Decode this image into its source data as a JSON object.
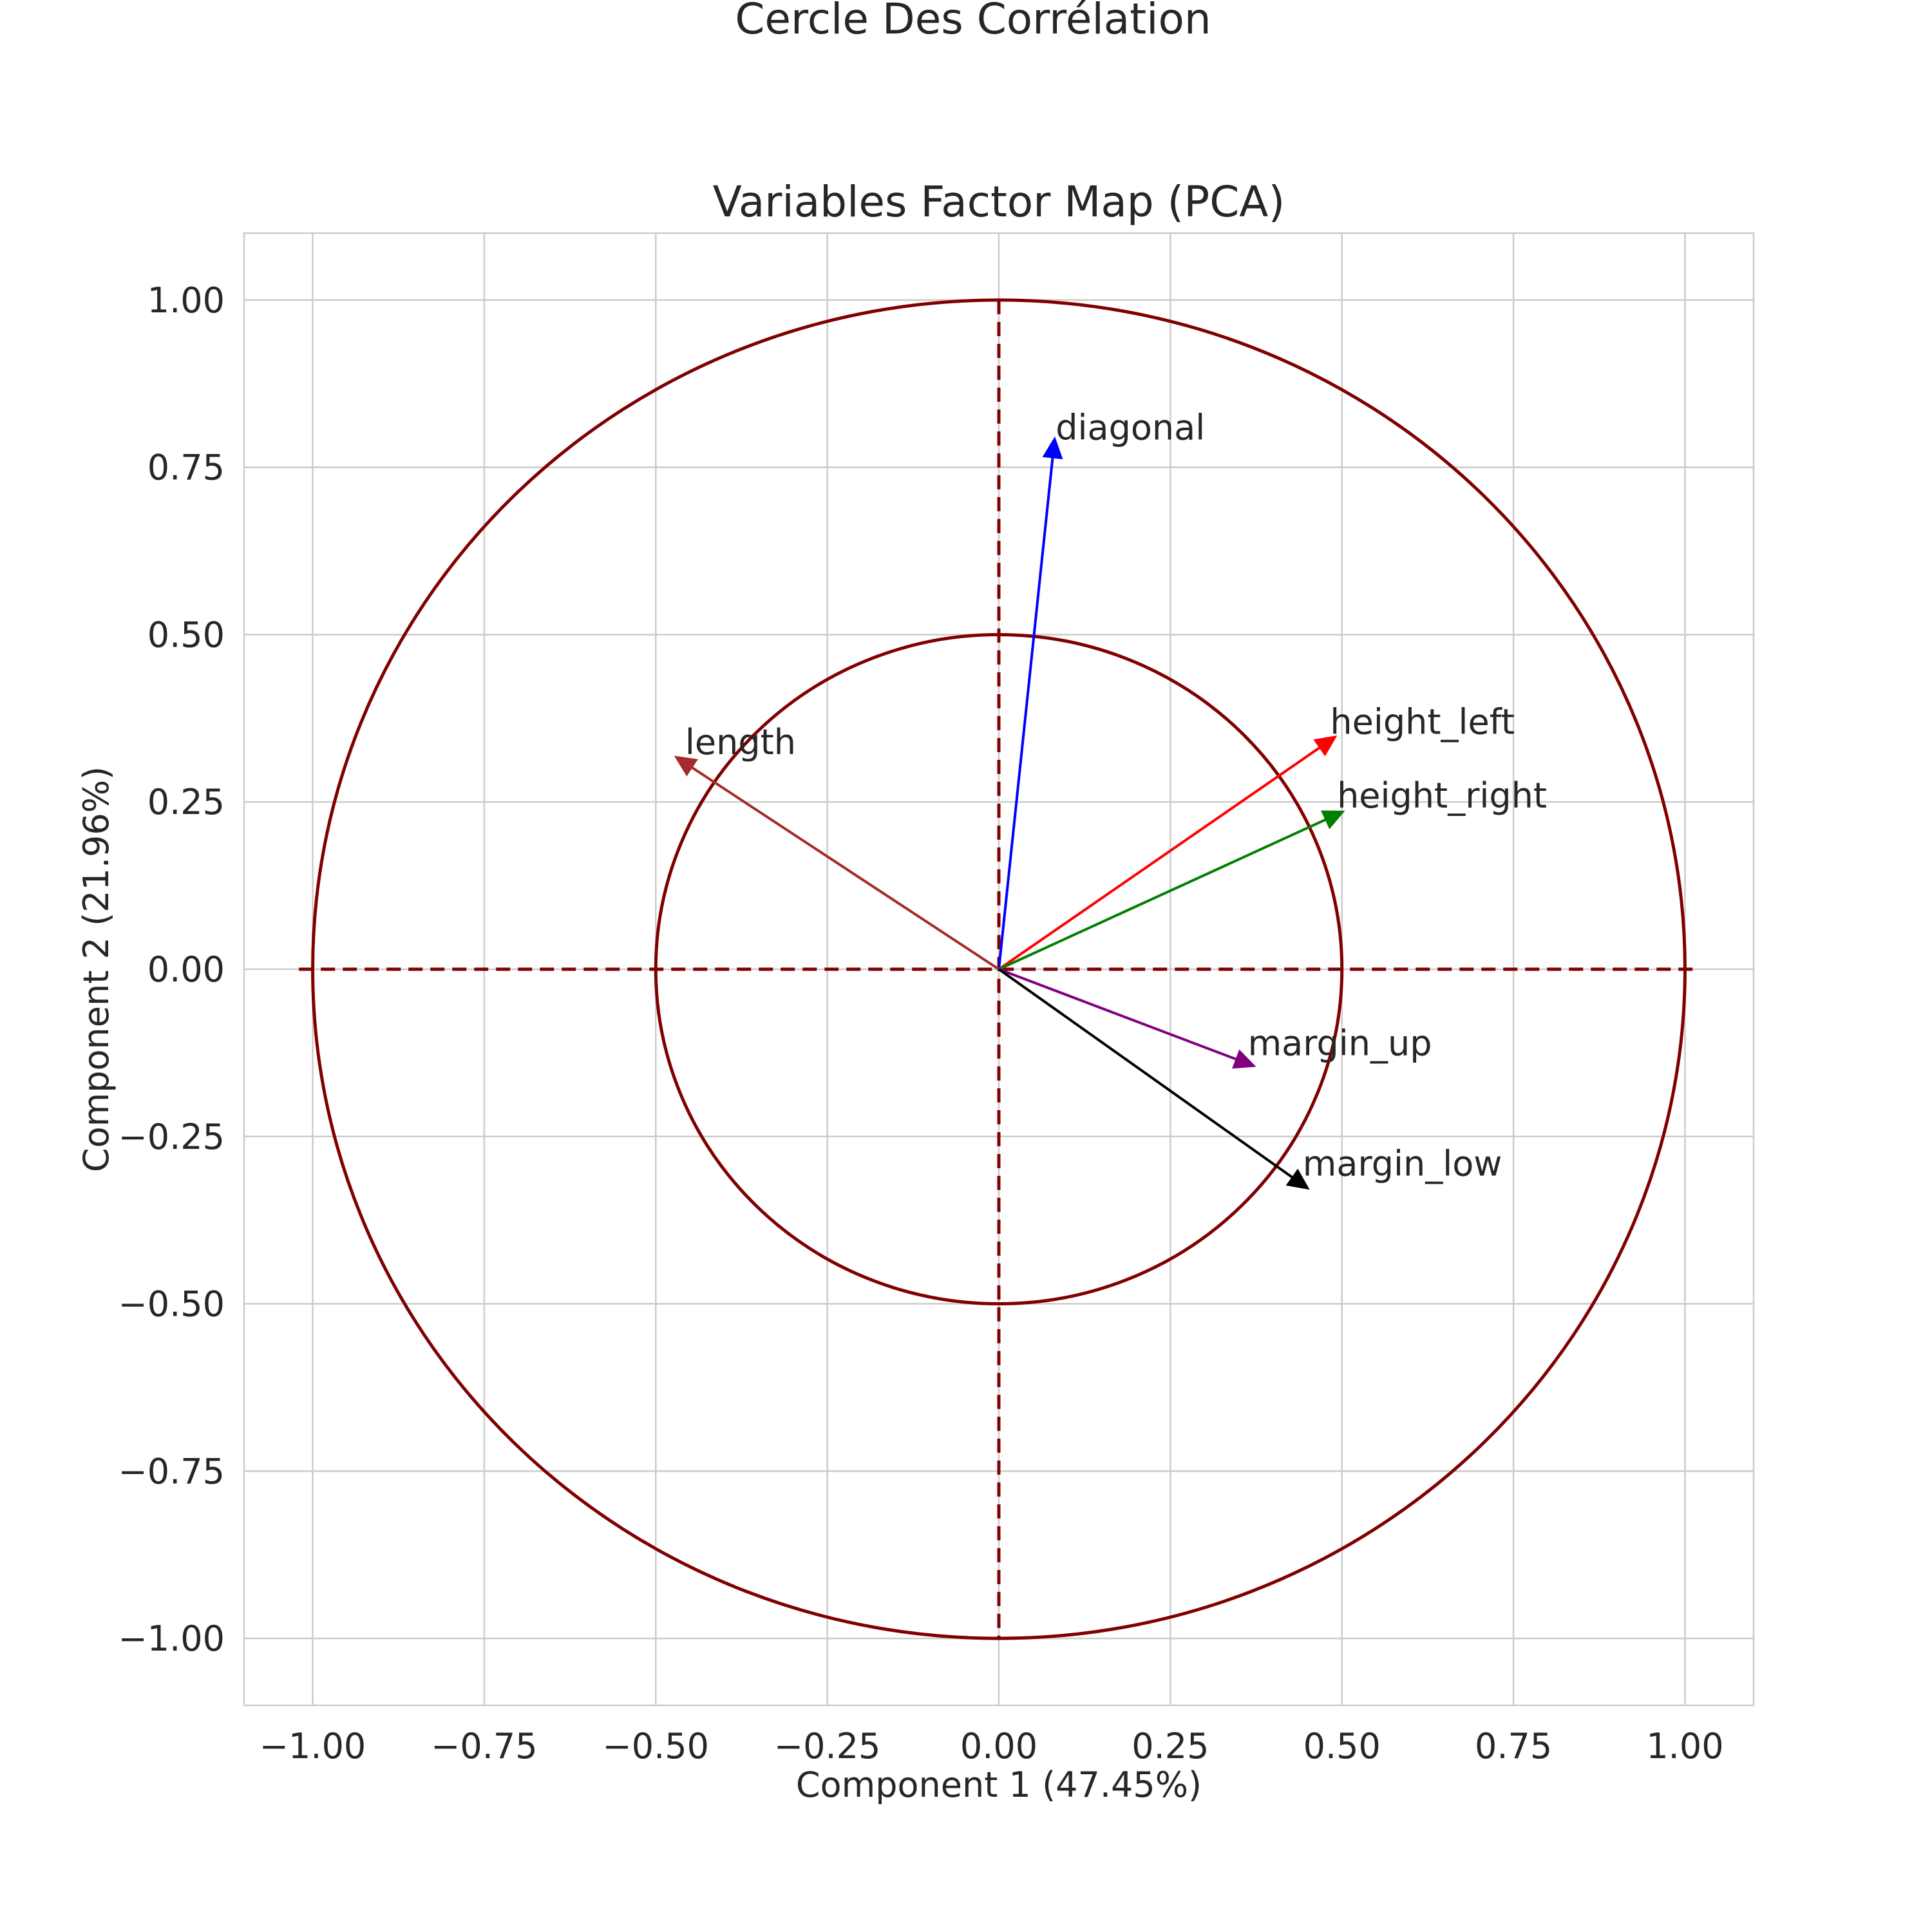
{
  "figure": {
    "suptitle": "Cercle Des Corrélation"
  },
  "chart_data": {
    "type": "scatter",
    "subtype": "pca-correlation-circle",
    "title": "Variables Factor Map (PCA)",
    "xlabel": "Component 1 (47.45%)",
    "ylabel": "Component 2 (21.96%)",
    "xlim": [
      -1.1,
      1.1
    ],
    "ylim": [
      -1.1,
      1.1
    ],
    "xticks": [
      -1.0,
      -0.75,
      -0.5,
      -0.25,
      0.0,
      0.25,
      0.5,
      0.75,
      1.0
    ],
    "yticks": [
      -1.0,
      -0.75,
      -0.5,
      -0.25,
      0.0,
      0.25,
      0.5,
      0.75,
      1.0
    ],
    "xtick_labels": [
      "−1.00",
      "−0.75",
      "−0.50",
      "−0.25",
      "0.00",
      "0.25",
      "0.50",
      "0.75",
      "1.00"
    ],
    "ytick_labels": [
      "−1.00",
      "−0.75",
      "−0.50",
      "−0.25",
      "0.00",
      "0.25",
      "0.50",
      "0.75",
      "1.00"
    ],
    "grid": true,
    "circles": [
      {
        "radius": 1.0,
        "color": "#800000"
      },
      {
        "radius": 0.5,
        "color": "#800000"
      }
    ],
    "reference_lines": {
      "color": "#800000",
      "style": "dashed",
      "x": 0,
      "y": 0
    },
    "vectors": [
      {
        "label": "diagonal",
        "x": 0.08,
        "y": 0.78,
        "color": "#0000ff"
      },
      {
        "label": "height_left",
        "x": 0.48,
        "y": 0.34,
        "color": "#ff0000"
      },
      {
        "label": "height_right",
        "x": 0.49,
        "y": 0.23,
        "color": "#008000"
      },
      {
        "label": "length",
        "x": -0.46,
        "y": 0.31,
        "color": "#a52a2a"
      },
      {
        "label": "margin_up",
        "x": 0.36,
        "y": -0.14,
        "color": "#800080"
      },
      {
        "label": "margin_low",
        "x": 0.44,
        "y": -0.32,
        "color": "#000000"
      }
    ]
  }
}
